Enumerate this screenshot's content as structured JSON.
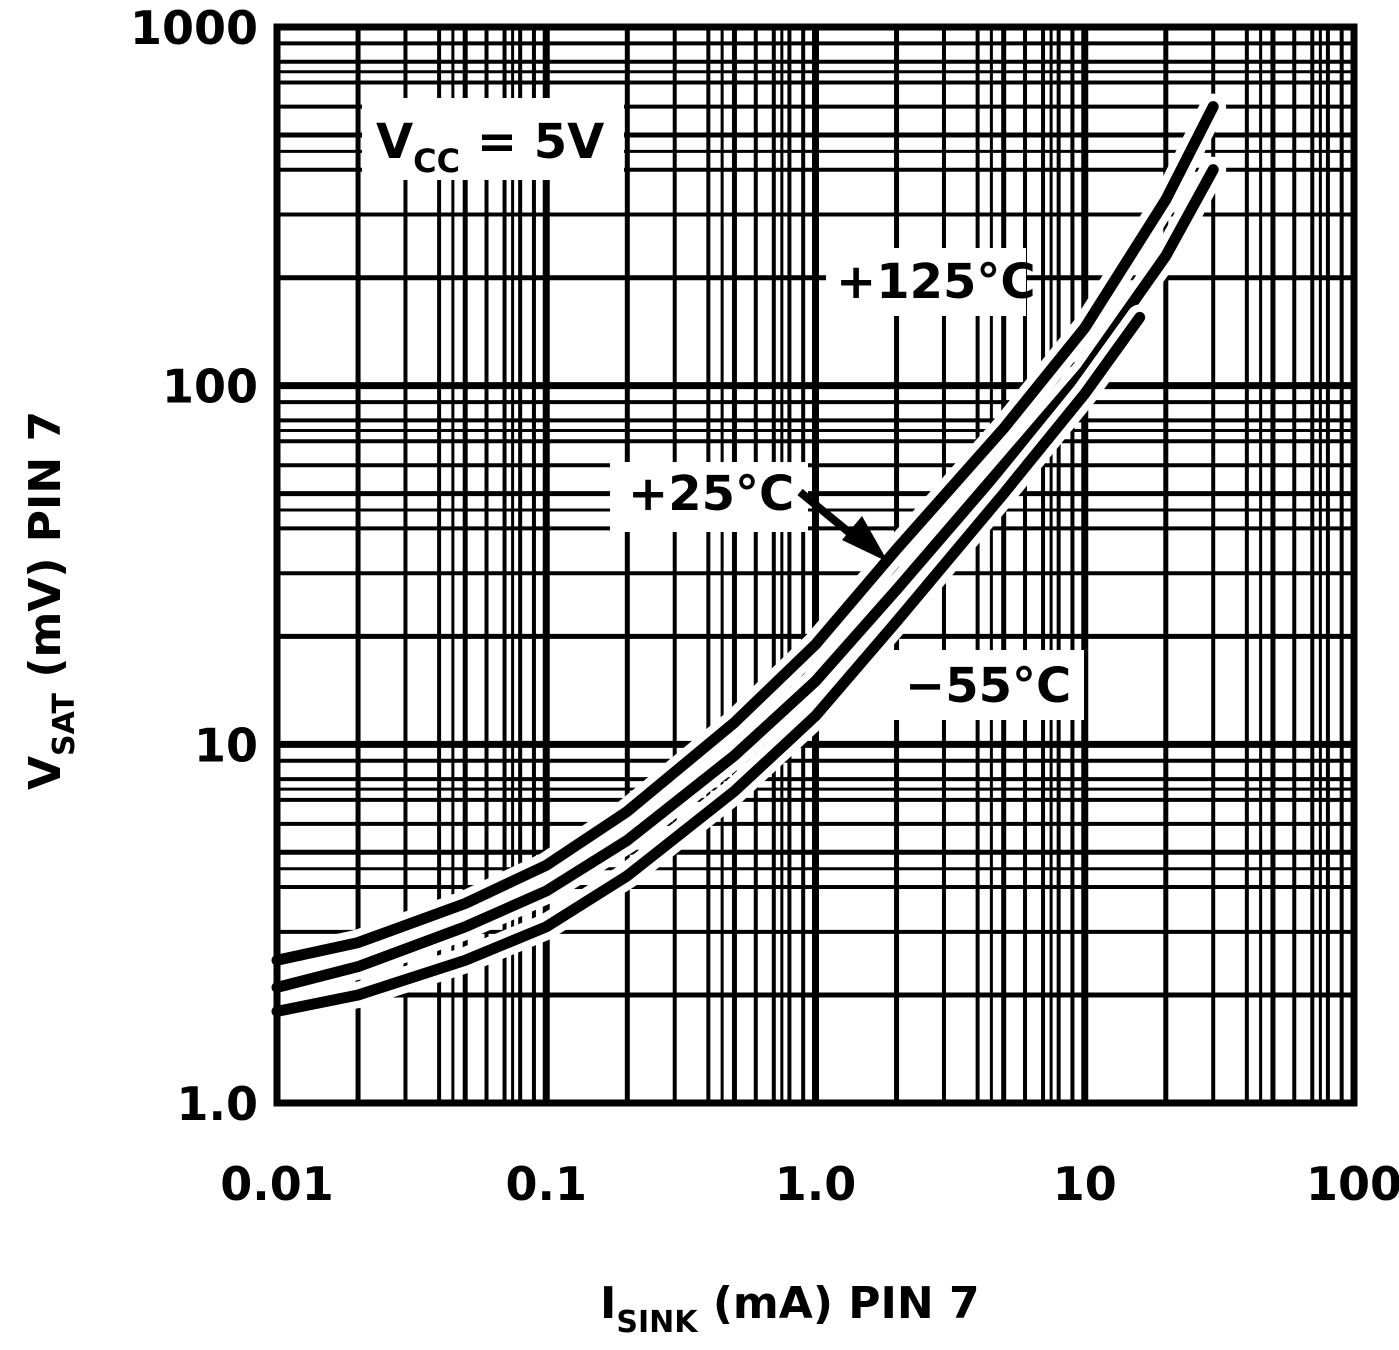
{
  "chart_data": {
    "type": "line",
    "x_scale": "log",
    "y_scale": "log",
    "xlim": [
      0.01,
      100
    ],
    "ylim": [
      1.0,
      1000
    ],
    "grid": true,
    "x_ticks": [
      "0.01",
      "0.1",
      "1.0",
      "10",
      "100"
    ],
    "y_ticks": [
      "1.0",
      "10",
      "100",
      "1000"
    ],
    "xlabel": {
      "main": "I",
      "sub": "SINK",
      "rest": " (mA) PIN 7"
    },
    "ylabel": {
      "main": "V",
      "sub": "SAT",
      "rest": " (mV) PIN 7"
    },
    "annotations": {
      "vcc": {
        "main": "V",
        "sub": "CC",
        "rest": " = 5V"
      },
      "t125": "+125°C",
      "t25": "+25°C",
      "tm55": "−55°C"
    },
    "series": [
      {
        "name": "+125°C",
        "x": [
          0.01,
          0.02,
          0.05,
          0.1,
          0.2,
          0.5,
          1.0,
          2.0,
          5.0,
          10,
          20,
          30
        ],
        "y": [
          2.5,
          2.8,
          3.6,
          4.6,
          6.5,
          11.5,
          19,
          35,
          76,
          145,
          330,
          600
        ]
      },
      {
        "name": "+25°C",
        "x": [
          0.01,
          0.02,
          0.05,
          0.1,
          0.2,
          0.5,
          1.0,
          2.0,
          5.0,
          10,
          20,
          30
        ],
        "y": [
          2.1,
          2.4,
          3.1,
          3.9,
          5.4,
          9.3,
          15,
          27,
          60,
          110,
          230,
          400
        ]
      },
      {
        "name": "−55°C",
        "x": [
          0.01,
          0.02,
          0.05,
          0.1,
          0.2,
          0.5,
          1.0,
          2.0,
          5.0,
          10,
          16
        ],
        "y": [
          1.8,
          2.0,
          2.5,
          3.1,
          4.3,
          7.4,
          12,
          22,
          50,
          95,
          155
        ]
      }
    ]
  }
}
